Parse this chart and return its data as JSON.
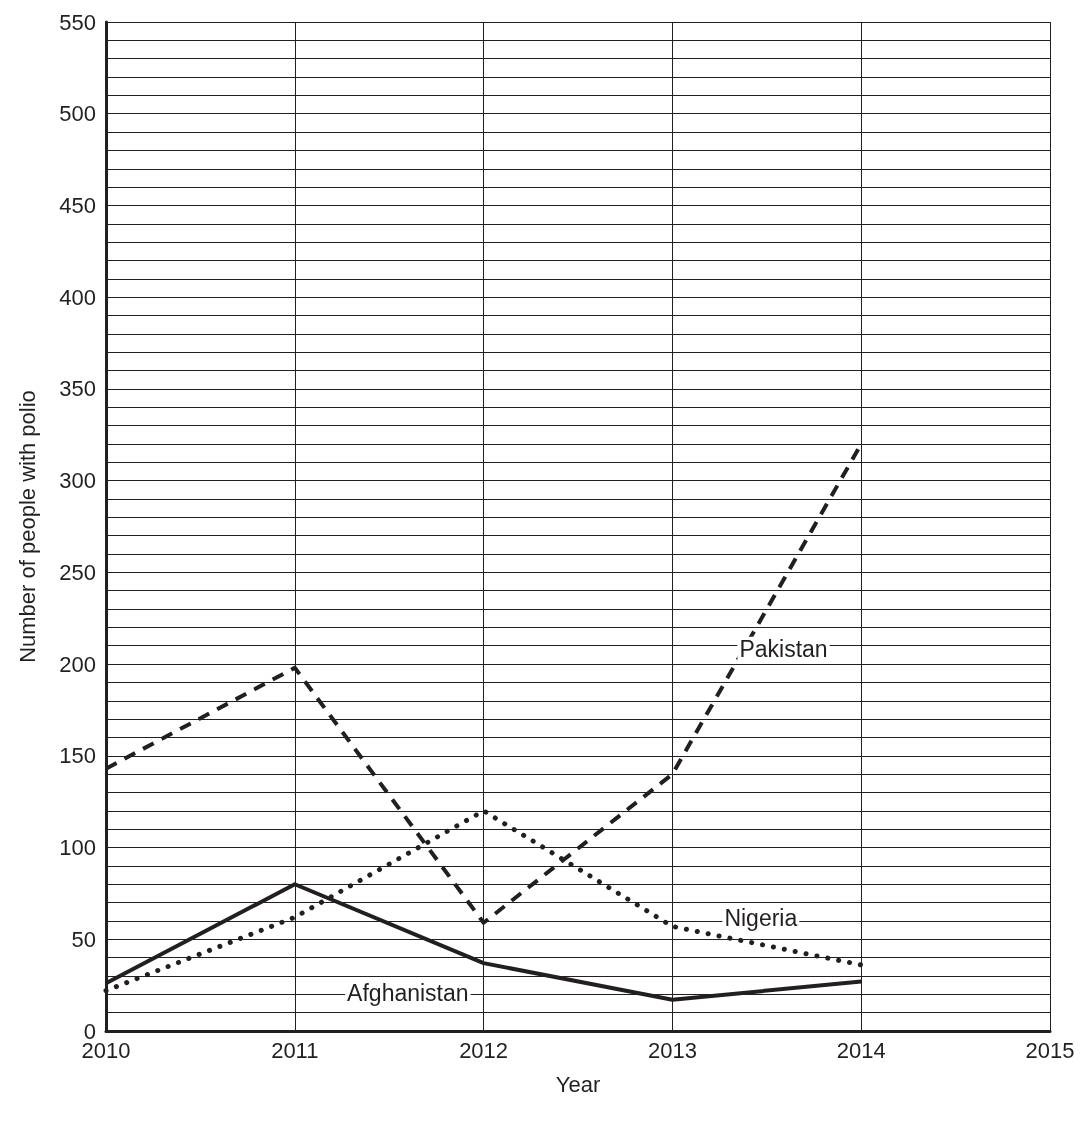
{
  "chart_data": {
    "type": "line",
    "xlabel": "Year",
    "ylabel": "Number of people with polio",
    "x": [
      2010,
      2011,
      2012,
      2013,
      2014
    ],
    "xlim": [
      2010,
      2015
    ],
    "xticks": [
      2010,
      2011,
      2012,
      2013,
      2014,
      2015
    ],
    "ylim": [
      0,
      550
    ],
    "yticks": [
      0,
      {
        "value": 10,
        "label": null
      },
      {
        "value": 20,
        "label": null
      },
      {
        "value": 30,
        "label": null
      },
      {
        "value": 40,
        "label": null
      },
      50,
      {
        "value": 60,
        "label": null
      },
      {
        "value": 70,
        "label": null
      },
      {
        "value": 80,
        "label": null
      },
      {
        "value": 90,
        "label": null
      },
      100,
      {
        "value": 110,
        "label": null
      },
      {
        "value": 120,
        "label": null
      },
      {
        "value": 130,
        "label": null
      },
      {
        "value": 140,
        "label": null
      },
      150,
      {
        "value": 160,
        "label": null
      },
      {
        "value": 170,
        "label": null
      },
      {
        "value": 180,
        "label": null
      },
      {
        "value": 190,
        "label": null
      },
      200,
      {
        "value": 210,
        "label": null
      },
      {
        "value": 220,
        "label": null
      },
      {
        "value": 230,
        "label": null
      },
      {
        "value": 240,
        "label": null
      },
      250,
      {
        "value": 260,
        "label": null
      },
      {
        "value": 270,
        "label": null
      },
      {
        "value": 280,
        "label": null
      },
      {
        "value": 290,
        "label": null
      },
      300,
      {
        "value": 310,
        "label": null
      },
      {
        "value": 320,
        "label": null
      },
      {
        "value": 330,
        "label": null
      },
      {
        "value": 340,
        "label": null
      },
      350,
      {
        "value": 360,
        "label": null
      },
      {
        "value": 370,
        "label": null
      },
      {
        "value": 380,
        "label": null
      },
      {
        "value": 390,
        "label": null
      },
      400,
      {
        "value": 410,
        "label": null
      },
      {
        "value": 420,
        "label": null
      },
      {
        "value": 430,
        "label": null
      },
      {
        "value": 440,
        "label": null
      },
      450,
      {
        "value": 460,
        "label": null
      },
      {
        "value": 470,
        "label": null
      },
      {
        "value": 480,
        "label": null
      },
      {
        "value": 490,
        "label": null
      },
      500,
      {
        "value": 510,
        "label": null
      },
      {
        "value": 520,
        "label": null
      },
      {
        "value": 530,
        "label": null
      },
      {
        "value": 540,
        "label": null
      },
      550
    ],
    "grid": true,
    "legend": false,
    "marker": "none",
    "series": [
      {
        "name": "Afghanistan",
        "color": "#231f20",
        "line_style": "solid",
        "values": [
          26,
          80,
          37,
          17,
          27
        ]
      },
      {
        "name": "Nigeria",
        "color": "#231f20",
        "line_style": "dotted",
        "values": [
          22,
          62,
          120,
          57,
          36
        ]
      },
      {
        "name": "Pakistan",
        "color": "#231f20",
        "line_style": "dashed",
        "values": [
          143,
          198,
          59,
          140,
          320
        ]
      }
    ]
  }
}
